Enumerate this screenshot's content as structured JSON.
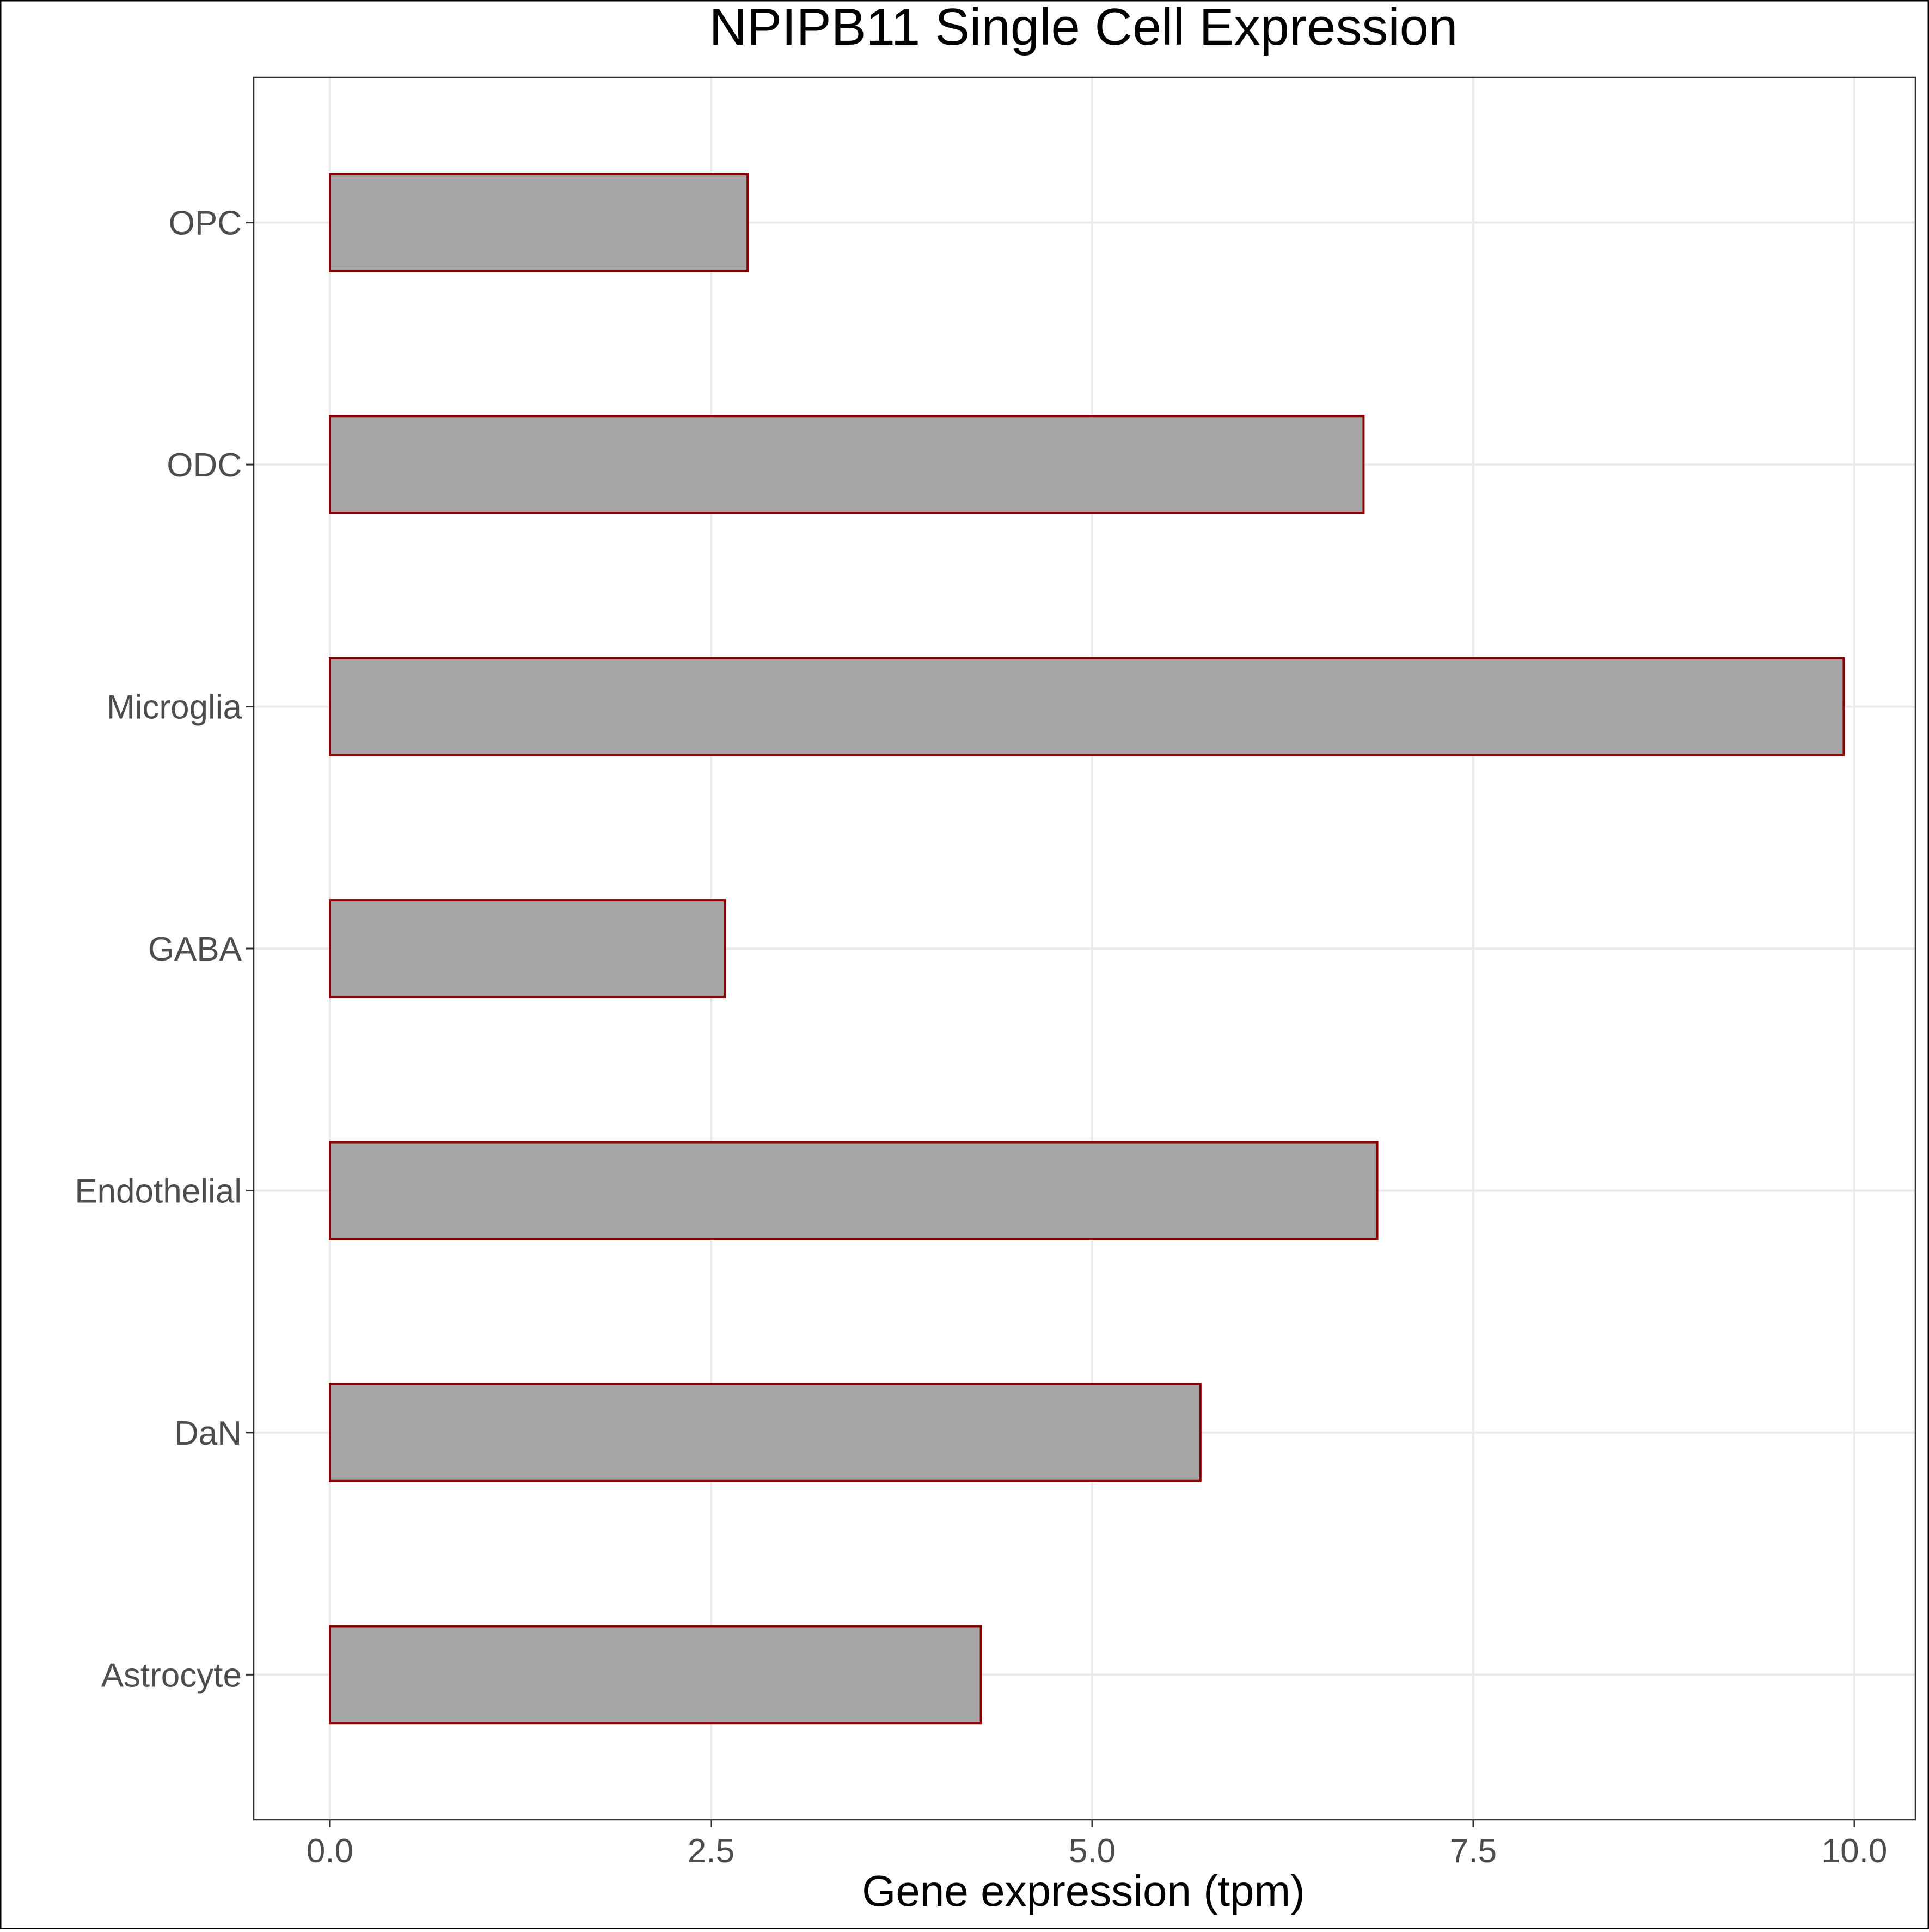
{
  "chart_data": {
    "type": "bar",
    "orientation": "horizontal",
    "title": "NPIPB11 Single Cell Expression",
    "xlabel": "Gene expression (tpm)",
    "ylabel": "",
    "categories": [
      "OPC",
      "ODC",
      "Microglia",
      "GABA",
      "Endothelial",
      "DaN",
      "Astrocyte"
    ],
    "values": [
      2.74,
      6.78,
      9.93,
      2.59,
      6.87,
      5.71,
      4.27
    ],
    "xlim": [
      -0.5,
      10.4
    ],
    "xticks": [
      0.0,
      2.5,
      5.0,
      7.5,
      10.0
    ],
    "xtick_labels": [
      "0.0",
      "2.5",
      "5.0",
      "7.5",
      "10.0"
    ],
    "grid": true,
    "legend": "none",
    "colors": {
      "bar_fill": "#a5a5a5",
      "bar_edge": "#8b0000",
      "grid": "#ebebeb",
      "panel_border": "#333333",
      "axis_text": "#4d4d4d",
      "title_text": "#000000"
    }
  }
}
